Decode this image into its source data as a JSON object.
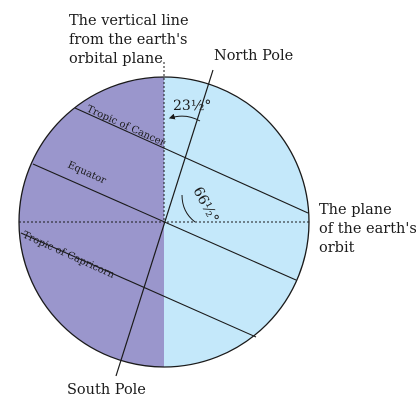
{
  "colors": {
    "night_side": "#9a96cc",
    "day_side": "#c4e8fa",
    "outline": "#1a1a1a"
  },
  "labels": {
    "vertical_line": [
      "The vertical line",
      "from the earth's",
      "orbital plane"
    ],
    "north_pole": "North Pole",
    "south_pole": "South Pole",
    "orbit_plane": [
      "The plane",
      "of the earth's",
      "orbit"
    ],
    "tropic_cancer": "Tropic of Cancer",
    "equator": "Equator",
    "tropic_capricorn": "Tropic of Capricorn",
    "tilt_angle": "23½°",
    "complement_angle": "66½°"
  }
}
